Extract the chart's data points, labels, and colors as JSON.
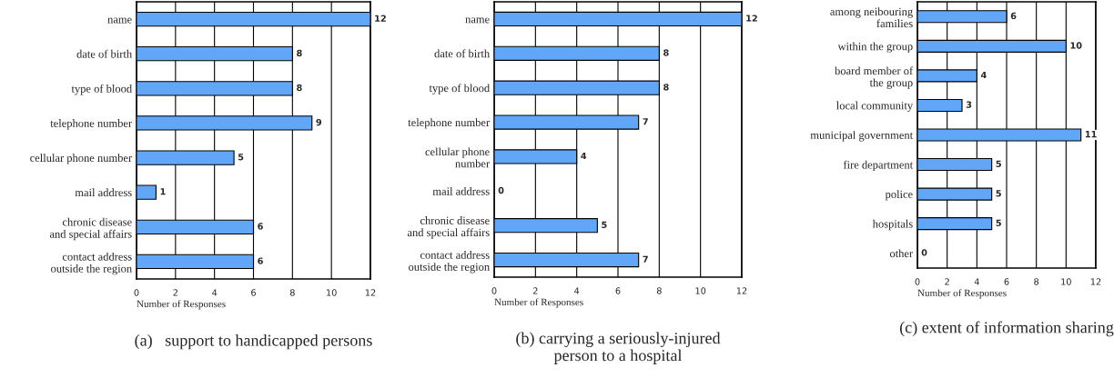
{
  "chart_data": [
    {
      "type": "bar",
      "orientation": "horizontal",
      "title": "(a)   support to handicapped persons",
      "xlabel": "Number of Responses",
      "categories": [
        "name",
        "date of birth",
        "type of blood",
        "telephone number",
        "cellular phone number",
        "mail address",
        "chronic disease\nand special affairs",
        "contact address\noutside the region"
      ],
      "values": [
        12,
        8,
        8,
        9,
        5,
        1,
        6,
        6
      ],
      "color": "#62a6f8",
      "xlim": [
        0,
        12
      ],
      "xticks": [
        0,
        2,
        4,
        6,
        8,
        10,
        12
      ],
      "grid": "x",
      "data_labels": true
    },
    {
      "type": "bar",
      "orientation": "horizontal",
      "title": "(b) carrying a seriously-injured\nperson to a hospital",
      "xlabel": "Number of Responses",
      "categories": [
        "name",
        "date of birth",
        "type of blood",
        "telephone number",
        "cellular phone\nnumber",
        "mail address",
        "chronic disease\nand special affairs",
        "contact address\noutside the region"
      ],
      "values": [
        12,
        8,
        8,
        7,
        4,
        0,
        5,
        7
      ],
      "color": "#62a6f8",
      "xlim": [
        0,
        12
      ],
      "xticks": [
        0,
        2,
        4,
        6,
        8,
        10,
        12
      ],
      "grid": "x",
      "data_labels": true
    },
    {
      "type": "bar",
      "orientation": "horizontal",
      "title": "(c) extent of information sharing",
      "xlabel": "Number of Responses",
      "categories": [
        "among neibouring\nfamilies",
        "within the group",
        "board member of\nthe group",
        "local community",
        "municipal government",
        "fire department",
        "police",
        "hospitals",
        "other"
      ],
      "values": [
        6,
        10,
        4,
        3,
        11,
        5,
        5,
        5,
        0
      ],
      "color": "#62a6f8",
      "xlim": [
        0,
        12
      ],
      "xticks": [
        0,
        2,
        4,
        6,
        8,
        10,
        12
      ],
      "grid": "x",
      "data_labels": true
    }
  ]
}
